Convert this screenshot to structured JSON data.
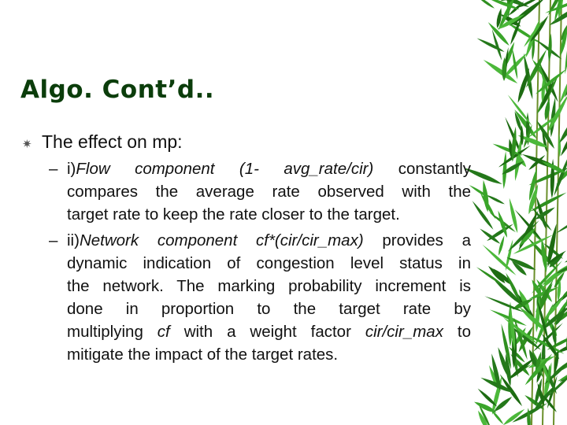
{
  "slide": {
    "title": "Algo. Cont’d..",
    "bullet": {
      "icon": "asterisk-bullet-icon",
      "text": "The effect on mp:"
    },
    "sub_bullets": [
      {
        "marker": "–",
        "lines": [
          [
            {
              "t": "i)",
              "i": false
            },
            {
              "t": "Flow component (1- avg_rate/cir)",
              "i": true
            },
            {
              "t": " constantly",
              "i": false
            }
          ],
          [
            {
              "t": "compares the average rate observed with the",
              "i": false
            }
          ],
          [
            {
              "t": "target rate to keep the rate closer to the target.",
              "i": false
            }
          ]
        ]
      },
      {
        "marker": "–",
        "lines": [
          [
            {
              "t": "ii)",
              "i": false
            },
            {
              "t": "Network component cf*(cir/cir_max)",
              "i": true
            },
            {
              "t": " provides a",
              "i": false
            }
          ],
          [
            {
              "t": "dynamic indication of congestion level status in",
              "i": false
            }
          ],
          [
            {
              "t": "the network. The marking probability increment is",
              "i": false
            }
          ],
          [
            {
              "t": "done in proportion to the target rate by",
              "i": false
            }
          ],
          [
            {
              "t": "multiplying ",
              "i": false
            },
            {
              "t": "cf",
              "i": true
            },
            {
              "t": " with a weight factor ",
              "i": false
            },
            {
              "t": "cir/cir_max",
              "i": true
            },
            {
              "t": " to",
              "i": false
            }
          ],
          [
            {
              "t": "mitigate the impact of the target rates.",
              "i": false
            }
          ]
        ]
      }
    ],
    "colors": {
      "title": "#0b3d0b",
      "leaf": "#2f8f1f",
      "leaf_dark": "#1d6b12"
    }
  }
}
